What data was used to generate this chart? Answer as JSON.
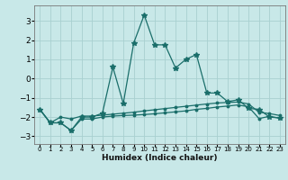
{
  "background_color": "#c8e8e8",
  "grid_color": "#a8d0d0",
  "line_color": "#1a6e6a",
  "xlabel": "Humidex (Indice chaleur)",
  "xlim": [
    -0.5,
    23.5
  ],
  "ylim": [
    -3.4,
    3.8
  ],
  "yticks": [
    -3,
    -2,
    -1,
    0,
    1,
    2,
    3
  ],
  "xticks": [
    0,
    1,
    2,
    3,
    4,
    5,
    6,
    7,
    8,
    9,
    10,
    11,
    12,
    13,
    14,
    15,
    16,
    17,
    18,
    19,
    20,
    21,
    22,
    23
  ],
  "s_main": [
    -1.6,
    -2.3,
    -2.3,
    -2.7,
    -2.0,
    -2.0,
    -1.8,
    0.6,
    -1.3,
    1.85,
    3.3,
    1.75,
    1.75,
    0.55,
    1.0,
    1.25,
    -0.75,
    -0.75,
    -1.2,
    -1.1,
    -1.55,
    -1.6,
    -2.0,
    -2.05
  ],
  "s_mid": [
    -1.6,
    -2.3,
    -2.0,
    -2.1,
    -1.95,
    -1.95,
    -1.9,
    -1.85,
    -1.8,
    -1.75,
    -1.68,
    -1.62,
    -1.56,
    -1.5,
    -1.44,
    -1.38,
    -1.32,
    -1.27,
    -1.24,
    -1.22,
    -1.32,
    -1.75,
    -1.82,
    -1.92
  ],
  "s_bot": [
    -1.6,
    -2.3,
    -2.3,
    -2.7,
    -2.1,
    -2.1,
    -2.0,
    -1.95,
    -1.92,
    -1.9,
    -1.87,
    -1.83,
    -1.78,
    -1.73,
    -1.68,
    -1.6,
    -1.55,
    -1.48,
    -1.43,
    -1.37,
    -1.47,
    -2.08,
    -1.96,
    -2.06
  ]
}
